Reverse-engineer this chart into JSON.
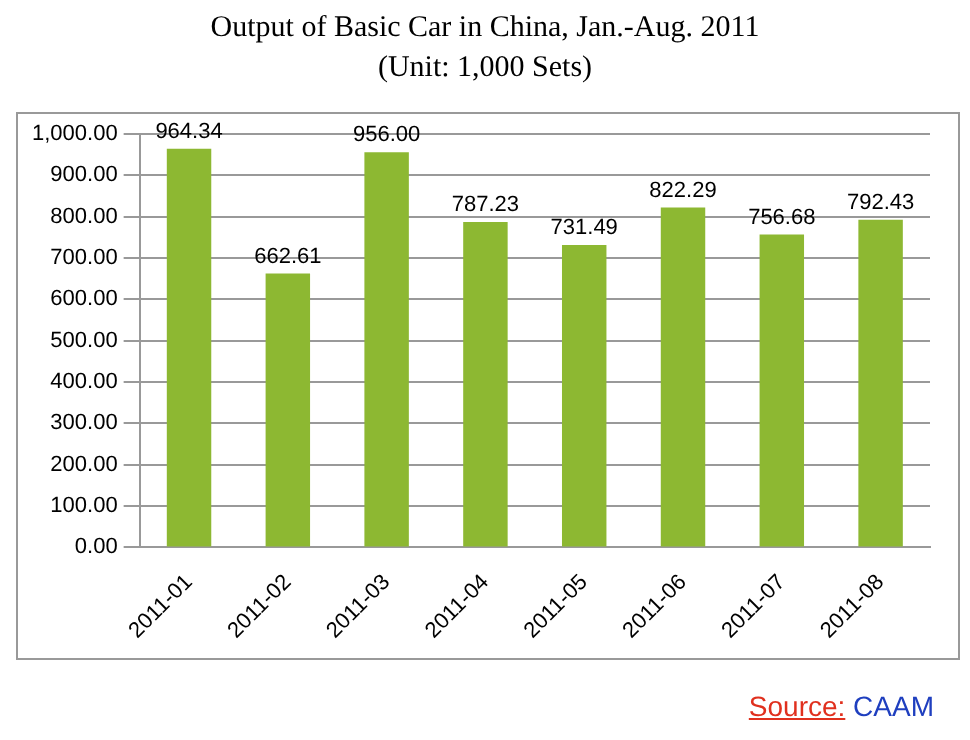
{
  "chart_data": {
    "type": "bar",
    "title": "Output of Basic Car in China, Jan.-Aug. 2011",
    "subtitle": "(Unit: 1,000 Sets)",
    "categories": [
      "2011-01",
      "2011-02",
      "2011-03",
      "2011-04",
      "2011-05",
      "2011-06",
      "2011-07",
      "2011-08"
    ],
    "values": [
      964.34,
      662.61,
      956.0,
      787.23,
      731.49,
      822.29,
      756.68,
      792.43
    ],
    "value_labels": [
      "964.34",
      "662.61",
      "956.00",
      "787.23",
      "731.49",
      "822.29",
      "756.68",
      "792.43"
    ],
    "color": "#8db832",
    "ylim": [
      0,
      1000
    ],
    "yticks": [
      {
        "value": 0,
        "label": "0.00"
      },
      {
        "value": 100,
        "label": "100.00"
      },
      {
        "value": 200,
        "label": "200.00"
      },
      {
        "value": 300,
        "label": "300.00"
      },
      {
        "value": 400,
        "label": "400.00"
      },
      {
        "value": 500,
        "label": "500.00"
      },
      {
        "value": 600,
        "label": "600.00"
      },
      {
        "value": 700,
        "label": "700.00"
      },
      {
        "value": 800,
        "label": "800.00"
      },
      {
        "value": 900,
        "label": "900.00"
      },
      {
        "value": 1000,
        "label": "1,000.00"
      }
    ],
    "grid": "y",
    "legend": false,
    "annotations": [
      "Source:  CAAM"
    ]
  }
}
